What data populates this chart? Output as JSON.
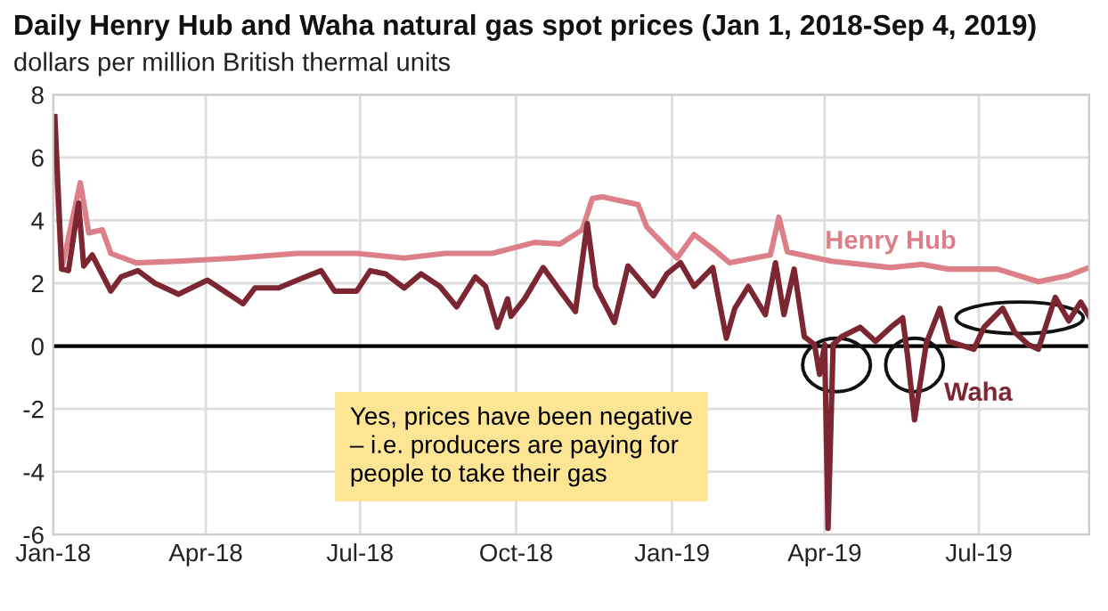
{
  "chart_data": {
    "type": "line",
    "title": "Daily Henry Hub and Waha natural gas spot prices (Jan 1, 2018-Sep 4, 2019)",
    "subtitle": "dollars per million British thermal units",
    "series": [
      {
        "name": "Henry Hub",
        "color": "#dc7f88",
        "x": [
          "2018-01-02",
          "2018-01-06",
          "2018-01-17",
          "2018-01-22",
          "2018-01-30",
          "2018-02-04",
          "2018-02-19",
          "2018-03-16",
          "2018-04-19",
          "2018-05-25",
          "2018-06-29",
          "2018-07-27",
          "2018-08-20",
          "2018-09-17",
          "2018-10-12",
          "2018-10-27",
          "2018-11-09",
          "2018-11-15",
          "2018-11-21",
          "2018-12-12",
          "2018-12-17",
          "2019-01-04",
          "2019-01-14",
          "2019-01-25",
          "2019-02-04",
          "2019-02-28",
          "2019-03-05",
          "2019-03-10",
          "2019-04-05",
          "2019-05-10",
          "2019-05-28",
          "2019-06-13",
          "2019-07-12",
          "2019-08-05",
          "2019-08-23",
          "2019-09-04"
        ],
        "values": [
          6.5,
          2.45,
          5.2,
          3.6,
          3.7,
          2.95,
          2.65,
          2.7,
          2.8,
          2.95,
          2.95,
          2.8,
          2.95,
          2.95,
          3.3,
          3.25,
          3.7,
          4.7,
          4.75,
          4.5,
          3.8,
          2.8,
          3.55,
          3.1,
          2.65,
          2.9,
          4.1,
          3.0,
          2.7,
          2.5,
          2.6,
          2.45,
          2.45,
          2.05,
          2.25,
          2.5
        ]
      },
      {
        "name": "Waha",
        "color": "#7b2631",
        "x": [
          "2018-01-02",
          "2018-01-06",
          "2018-01-10",
          "2018-01-16",
          "2018-01-19",
          "2018-01-24",
          "2018-02-04",
          "2018-02-10",
          "2018-02-20",
          "2018-03-02",
          "2018-03-16",
          "2018-04-02",
          "2018-04-23",
          "2018-04-30",
          "2018-05-14",
          "2018-05-25",
          "2018-06-08",
          "2018-06-16",
          "2018-06-29",
          "2018-07-07",
          "2018-07-16",
          "2018-07-27",
          "2018-08-06",
          "2018-08-17",
          "2018-08-27",
          "2018-09-07",
          "2018-09-13",
          "2018-09-20",
          "2018-09-26",
          "2018-09-28",
          "2018-10-06",
          "2018-10-17",
          "2018-10-27",
          "2018-11-05",
          "2018-11-12",
          "2018-11-17",
          "2018-11-28",
          "2018-12-06",
          "2018-12-21",
          "2018-12-29",
          "2019-01-06",
          "2019-01-14",
          "2019-01-25",
          "2019-02-02",
          "2019-02-07",
          "2019-02-15",
          "2019-02-25",
          "2019-03-03",
          "2019-03-08",
          "2019-03-14",
          "2019-03-20",
          "2019-03-26",
          "2019-03-29",
          "2019-04-01",
          "2019-04-03",
          "2019-04-06",
          "2019-04-11",
          "2019-04-22",
          "2019-05-01",
          "2019-05-10",
          "2019-05-17",
          "2019-05-20",
          "2019-05-24",
          "2019-05-31",
          "2019-06-08",
          "2019-06-13",
          "2019-06-28",
          "2019-07-04",
          "2019-07-15",
          "2019-07-22",
          "2019-07-30",
          "2019-08-05",
          "2019-08-15",
          "2019-08-23",
          "2019-08-30",
          "2019-09-04"
        ],
        "values": [
          7.3,
          2.45,
          2.4,
          4.55,
          2.55,
          2.9,
          1.75,
          2.2,
          2.4,
          2.0,
          1.65,
          2.1,
          1.35,
          1.85,
          1.85,
          2.1,
          2.4,
          1.75,
          1.75,
          2.4,
          2.3,
          1.85,
          2.3,
          1.9,
          1.25,
          2.2,
          1.9,
          0.6,
          1.5,
          0.95,
          1.5,
          2.5,
          1.75,
          1.1,
          3.9,
          1.9,
          0.75,
          2.55,
          1.6,
          2.3,
          2.65,
          1.9,
          2.5,
          0.25,
          1.2,
          1.9,
          1.0,
          2.65,
          1.0,
          2.45,
          0.3,
          0.05,
          -0.9,
          0.05,
          -5.8,
          0.05,
          0.3,
          0.6,
          0.15,
          0.6,
          0.9,
          -0.35,
          -2.35,
          0.1,
          1.2,
          0.15,
          -0.1,
          0.6,
          1.2,
          0.45,
          0.05,
          -0.1,
          1.55,
          0.8,
          1.4,
          0.95
        ]
      }
    ],
    "xlim": [
      "2018-01-01",
      "2019-09-04"
    ],
    "xticks": [
      {
        "value": "2018-01-01",
        "label": "Jan-18"
      },
      {
        "value": "2018-04-01",
        "label": "Apr-18"
      },
      {
        "value": "2018-07-01",
        "label": "Jul-18"
      },
      {
        "value": "2018-10-01",
        "label": "Oct-18"
      },
      {
        "value": "2019-01-01",
        "label": "Jan-19"
      },
      {
        "value": "2019-04-01",
        "label": "Apr-19"
      },
      {
        "value": "2019-07-01",
        "label": "Jul-19"
      }
    ],
    "ylim": [
      -6,
      8
    ],
    "yticks": [
      -6,
      -4,
      -2,
      0,
      2,
      4,
      6,
      8
    ],
    "grid": true,
    "legend": false,
    "ref_lines": [
      {
        "axis": "y",
        "value": 0,
        "label": null,
        "color": "#000000"
      }
    ],
    "annotations": [
      "Yes, prices have been negative\n– i.e. producers are paying for\npeople to take their gas"
    ]
  }
}
